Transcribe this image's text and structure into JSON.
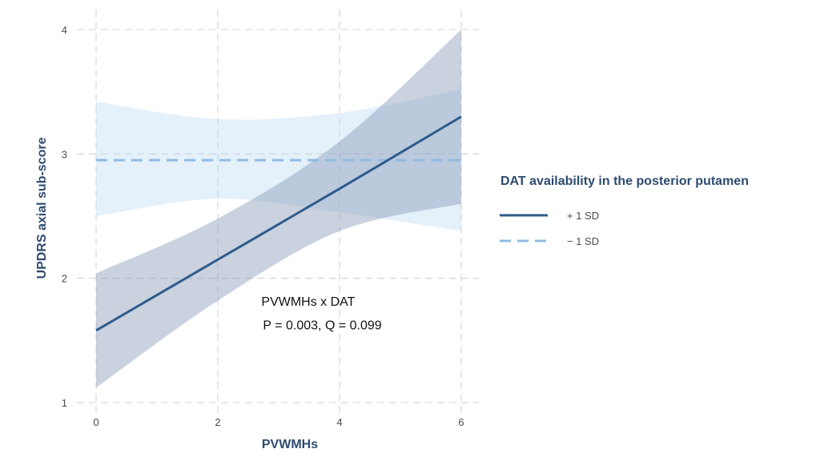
{
  "chart_data": {
    "type": "line",
    "xlabel": "PVWMHs",
    "ylabel": "UPDRS axial sub-score",
    "xlim": [
      0,
      6
    ],
    "ylim": [
      1,
      4
    ],
    "x_ticks": [
      0,
      2,
      4,
      6
    ],
    "y_ticks": [
      1,
      2,
      3,
      4
    ],
    "x_tick_labels": [
      "0",
      "2",
      "4",
      "6"
    ],
    "y_tick_labels": [
      "1",
      "2",
      "3",
      "4"
    ],
    "grid": true,
    "legend": {
      "title": "DAT availability in the posterior putamen",
      "placement": "right"
    },
    "series": [
      {
        "name": "+ 1 SD",
        "line_style": "solid",
        "color": "#2e5b8c",
        "band_color": "#8a99b8",
        "x": [
          0,
          2,
          4,
          6
        ],
        "y": [
          1.58,
          2.15,
          2.72,
          3.3
        ],
        "ci_lower": [
          1.12,
          1.82,
          2.38,
          2.6
        ],
        "ci_upper": [
          2.04,
          2.48,
          3.1,
          4.0
        ]
      },
      {
        "name": "− 1 SD",
        "line_style": "dashed",
        "color": "#90bce3",
        "band_color": "#b9d7f1",
        "x": [
          0,
          2,
          4,
          6
        ],
        "y": [
          2.95,
          2.95,
          2.95,
          2.95
        ],
        "ci_lower": [
          2.5,
          2.64,
          2.53,
          2.38
        ],
        "ci_upper": [
          3.42,
          3.28,
          3.33,
          3.52
        ]
      }
    ],
    "annotations": [
      {
        "text": "PVWMHs x DAT",
        "x": 3.9,
        "y": 1.78
      },
      {
        "text": "P = 0.003, Q = 0.099",
        "x": 3.9,
        "y": 1.59
      }
    ]
  }
}
